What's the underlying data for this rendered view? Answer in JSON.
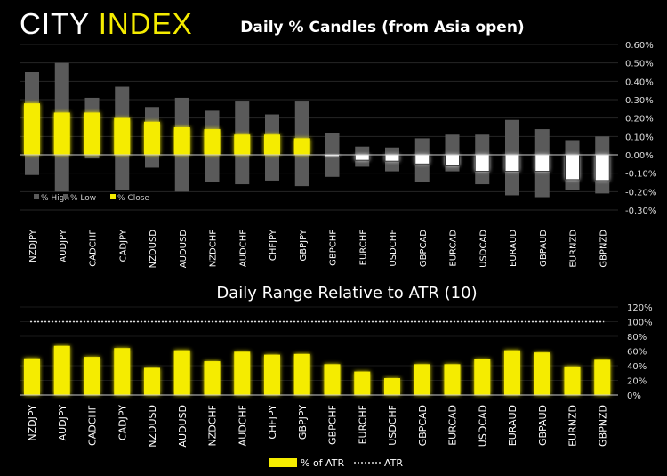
{
  "logo": {
    "part1": "CITY",
    "part2": "INDEX"
  },
  "colors": {
    "accent": "#f5ec00",
    "range_bar": "#5a5a5a",
    "negative_close": "#ffffff",
    "grid": "#262626",
    "background": "#000000"
  },
  "chart_data": [
    {
      "type": "bar",
      "title": "Daily % Candles (from Asia open)",
      "categories": [
        "NZDJPY",
        "AUDJPY",
        "CADCHF",
        "CADJPY",
        "NZDUSD",
        "AUDUSD",
        "NZDCHF",
        "AUDCHF",
        "CHFJPY",
        "GBPJPY",
        "GBPCHF",
        "EURCHF",
        "USDCHF",
        "GBPCAD",
        "EURCAD",
        "USDCAD",
        "EURAUD",
        "GBPAUD",
        "EURNZD",
        "GBPNZD"
      ],
      "series": [
        {
          "name": "% High",
          "values": [
            0.45,
            0.5,
            0.31,
            0.37,
            0.26,
            0.31,
            0.24,
            0.29,
            0.22,
            0.29,
            0.12,
            0.045,
            0.04,
            0.09,
            0.11,
            0.11,
            0.19,
            0.14,
            0.08,
            0.1
          ]
        },
        {
          "name": "% Low",
          "values": [
            -0.11,
            -0.2,
            -0.02,
            -0.19,
            -0.07,
            -0.2,
            -0.15,
            -0.16,
            -0.14,
            -0.17,
            -0.12,
            -0.065,
            -0.09,
            -0.15,
            -0.09,
            -0.16,
            -0.22,
            -0.23,
            -0.19,
            -0.21
          ]
        },
        {
          "name": "% Close",
          "values": [
            0.28,
            0.23,
            0.23,
            0.2,
            0.18,
            0.15,
            0.14,
            0.11,
            0.11,
            0.09,
            -0.01,
            -0.03,
            -0.035,
            -0.05,
            -0.06,
            -0.09,
            -0.09,
            -0.09,
            -0.135,
            -0.14
          ]
        }
      ],
      "ylim": [
        -0.3,
        0.6
      ],
      "yticks": [
        "0.60%",
        "0.50%",
        "0.40%",
        "0.30%",
        "0.20%",
        "0.10%",
        "0.00%",
        "-0.10%",
        "-0.20%",
        "-0.30%"
      ],
      "grid": true,
      "legend": "bottom-left"
    },
    {
      "type": "bar",
      "title": "Daily Range Relative to ATR (10)",
      "categories": [
        "NZDJPY",
        "AUDJPY",
        "CADCHF",
        "CADJPY",
        "NZDUSD",
        "AUDUSD",
        "NZDCHF",
        "AUDCHF",
        "CHFJPY",
        "GBPJPY",
        "GBPCHF",
        "EURCHF",
        "USDCHF",
        "GBPCAD",
        "EURCAD",
        "USDCAD",
        "EURAUD",
        "GBPAUD",
        "EURNZD",
        "GBPNZD"
      ],
      "series": [
        {
          "name": "% of ATR",
          "values": [
            50,
            67,
            52,
            64,
            37,
            61,
            46,
            59,
            55,
            56,
            42,
            32,
            23,
            42,
            42,
            49,
            61,
            58,
            39,
            48
          ]
        },
        {
          "name": "ATR",
          "values": [
            100,
            100,
            100,
            100,
            100,
            100,
            100,
            100,
            100,
            100,
            100,
            100,
            100,
            100,
            100,
            100,
            100,
            100,
            100,
            100
          ]
        }
      ],
      "ylim": [
        0,
        120
      ],
      "yticks": [
        "120%",
        "100%",
        "80%",
        "60%",
        "40%",
        "20%",
        "0%"
      ],
      "grid": true,
      "legend": "bottom"
    }
  ]
}
